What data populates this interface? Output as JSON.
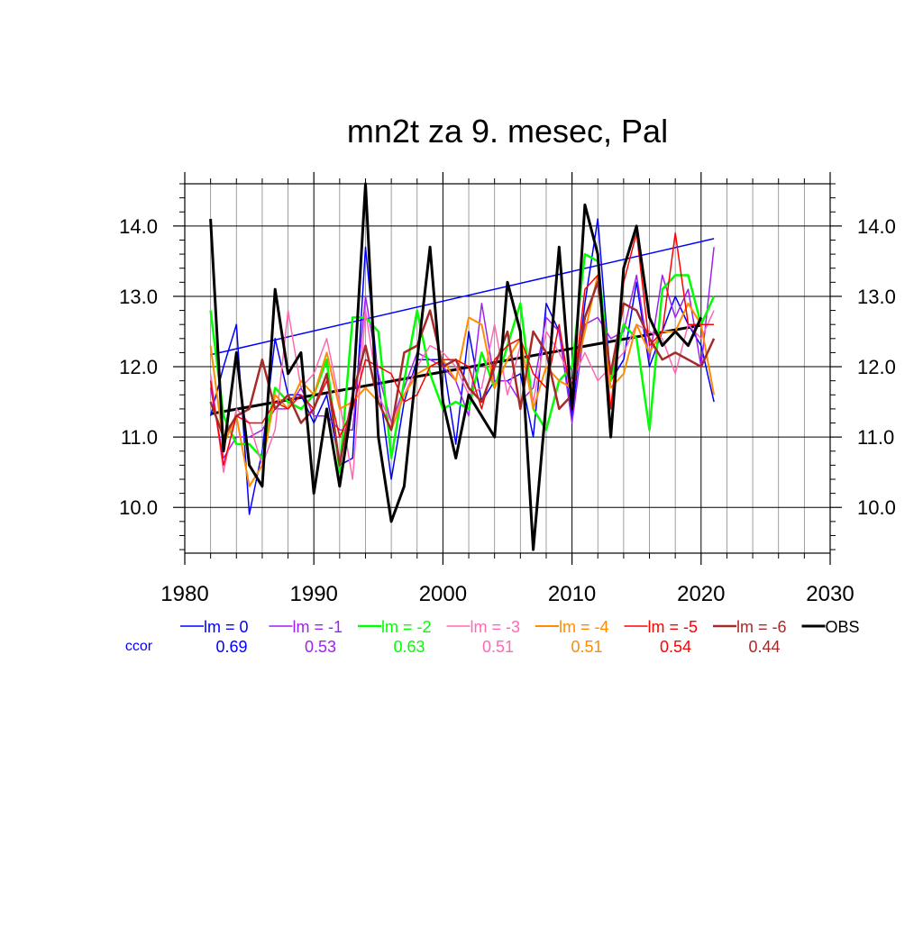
{
  "chart_data": {
    "type": "line",
    "title": "mn2t za 9. mesec, Pal",
    "xlabel": "",
    "ylabel": "",
    "xlim": [
      1980,
      2030
    ],
    "ylim": [
      9.35,
      14.6
    ],
    "x_ticks": [
      1980,
      1990,
      2000,
      2010,
      2020,
      2030
    ],
    "x_tick_labels": [
      "1980",
      "1990",
      "2000",
      "2010",
      "2020",
      "2030"
    ],
    "y_ticks": [
      10.0,
      11.0,
      12.0,
      13.0,
      14.0
    ],
    "y_tick_labels": [
      "10.0",
      "11.0",
      "12.0",
      "13.0",
      "14.0"
    ],
    "grid": true,
    "years": [
      1982,
      1983,
      1984,
      1985,
      1986,
      1987,
      1988,
      1989,
      1990,
      1991,
      1992,
      1993,
      1994,
      1995,
      1996,
      1997,
      1998,
      1999,
      2000,
      2001,
      2002,
      2003,
      2004,
      2005,
      2006,
      2007,
      2008,
      2009,
      2010,
      2011,
      2012,
      2013,
      2014,
      2015,
      2016,
      2017,
      2018,
      2019,
      2020,
      2021
    ],
    "series": [
      {
        "name": "lm = 0",
        "color": "#0000ff",
        "width": 1.5,
        "ccor": "0.69",
        "values": [
          11.3,
          12.0,
          12.6,
          9.9,
          10.8,
          12.4,
          11.6,
          11.6,
          11.2,
          11.6,
          10.6,
          10.7,
          13.7,
          11.8,
          10.4,
          11.5,
          12.1,
          12.1,
          12.1,
          10.9,
          12.5,
          11.5,
          11.8,
          11.8,
          11.9,
          11.0,
          12.9,
          12.5,
          11.3,
          12.9,
          14.1,
          11.8,
          12.1,
          13.2,
          12.0,
          12.5,
          13.0,
          12.6,
          12.3,
          11.5
        ]
      },
      {
        "name": "lm = -1",
        "color": "#a020f0",
        "width": 1.5,
        "ccor": "0.53",
        "values": [
          11.7,
          10.7,
          11.0,
          11.0,
          11.1,
          11.4,
          11.4,
          11.7,
          11.3,
          11.3,
          11.1,
          11.1,
          13.0,
          11.9,
          11.2,
          11.7,
          12.2,
          12.1,
          12.0,
          11.8,
          11.3,
          12.9,
          11.8,
          11.8,
          11.5,
          11.7,
          12.7,
          12.5,
          11.2,
          12.6,
          12.7,
          12.4,
          12.5,
          13.3,
          12.1,
          13.3,
          12.7,
          13.1,
          12.0,
          13.7
        ]
      },
      {
        "name": "lm = -2",
        "color": "#00ff00",
        "width": 2.5,
        "ccor": "0.63",
        "values": [
          12.8,
          11.3,
          10.9,
          10.9,
          10.7,
          11.7,
          11.5,
          11.4,
          11.6,
          12.1,
          10.5,
          12.7,
          12.7,
          12.5,
          10.7,
          11.8,
          12.8,
          11.9,
          11.4,
          11.5,
          11.4,
          12.2,
          11.7,
          12.3,
          12.9,
          11.4,
          11.1,
          11.8,
          12.0,
          13.6,
          13.5,
          11.8,
          12.6,
          12.4,
          11.1,
          13.1,
          13.3,
          13.3,
          12.6,
          13.0
        ]
      },
      {
        "name": "lm = -3",
        "color": "#ff69b4",
        "width": 1.5,
        "ccor": "0.51",
        "values": [
          11.9,
          10.5,
          11.4,
          11.2,
          10.6,
          11.1,
          12.8,
          11.7,
          11.9,
          12.4,
          11.5,
          10.4,
          12.8,
          11.6,
          11.2,
          11.6,
          12.0,
          12.3,
          12.2,
          12.0,
          11.6,
          11.7,
          12.6,
          11.6,
          12.3,
          11.5,
          12.5,
          12.2,
          11.8,
          12.2,
          11.8,
          12.0,
          12.2,
          12.6,
          12.5,
          12.4,
          11.9,
          12.6,
          12.4,
          12.8
        ]
      },
      {
        "name": "lm = -4",
        "color": "#ff8c00",
        "width": 2.0,
        "ccor": "0.51",
        "values": [
          12.3,
          10.9,
          11.3,
          10.3,
          10.6,
          11.6,
          11.4,
          11.8,
          11.6,
          12.2,
          11.4,
          11.5,
          11.7,
          11.5,
          11.1,
          11.6,
          11.9,
          12.0,
          12.1,
          11.8,
          12.7,
          12.6,
          11.7,
          12.1,
          12.4,
          11.4,
          12.0,
          11.8,
          11.7,
          12.5,
          13.3,
          11.7,
          11.9,
          12.6,
          12.2,
          12.5,
          12.5,
          12.9,
          12.6,
          11.6
        ]
      },
      {
        "name": "lm = -5",
        "color": "#ff0000",
        "width": 1.5,
        "ccor": "0.54",
        "values": [
          11.8,
          10.6,
          11.3,
          11.2,
          11.2,
          11.5,
          11.4,
          11.6,
          11.4,
          11.8,
          11.0,
          11.4,
          12.1,
          12.0,
          11.9,
          11.5,
          11.6,
          12.0,
          12.1,
          12.1,
          12.0,
          11.4,
          12.1,
          12.3,
          12.4,
          11.9,
          11.7,
          12.6,
          11.5,
          13.1,
          13.3,
          11.4,
          13.2,
          13.9,
          12.3,
          12.5,
          13.9,
          12.6,
          12.6,
          12.6
        ]
      },
      {
        "name": "lm = -6",
        "color": "#a52a2a",
        "width": 2.5,
        "ccor": "0.44",
        "values": [
          11.5,
          11.0,
          11.3,
          11.4,
          12.1,
          11.4,
          11.6,
          11.2,
          11.4,
          11.9,
          10.6,
          11.6,
          12.3,
          11.5,
          11.1,
          12.2,
          12.3,
          12.8,
          12.0,
          12.1,
          11.7,
          11.5,
          12.0,
          12.5,
          11.4,
          12.5,
          12.2,
          11.4,
          11.6,
          12.7,
          13.2,
          11.9,
          12.9,
          12.8,
          12.4,
          12.1,
          12.2,
          12.1,
          12.0,
          12.4
        ]
      },
      {
        "name": "OBS",
        "color": "#000000",
        "width": 3.0,
        "ccor": "",
        "values": [
          14.1,
          10.8,
          12.2,
          10.6,
          10.3,
          13.1,
          11.9,
          12.2,
          10.2,
          11.4,
          10.3,
          11.5,
          14.6,
          11.0,
          9.8,
          10.3,
          12.1,
          13.7,
          11.5,
          10.7,
          11.6,
          11.3,
          11.0,
          13.2,
          12.5,
          9.4,
          11.5,
          13.7,
          11.4,
          14.3,
          13.6,
          11.0,
          13.4,
          14.0,
          12.7,
          12.3,
          12.5,
          12.3,
          12.7,
          null
        ]
      }
    ],
    "trend_lines": [
      {
        "of": "lm = 0",
        "color": "#0000ff",
        "width": 1.5,
        "x": [
          1982,
          2021
        ],
        "y": [
          12.17,
          13.82
        ]
      },
      {
        "of": "OBS",
        "color": "#000000",
        "width": 3.0,
        "x": [
          1982,
          2020
        ],
        "y": [
          11.33,
          12.59
        ]
      }
    ],
    "ccor_label": "ccor",
    "ccor_label_color": "#0000ff"
  }
}
